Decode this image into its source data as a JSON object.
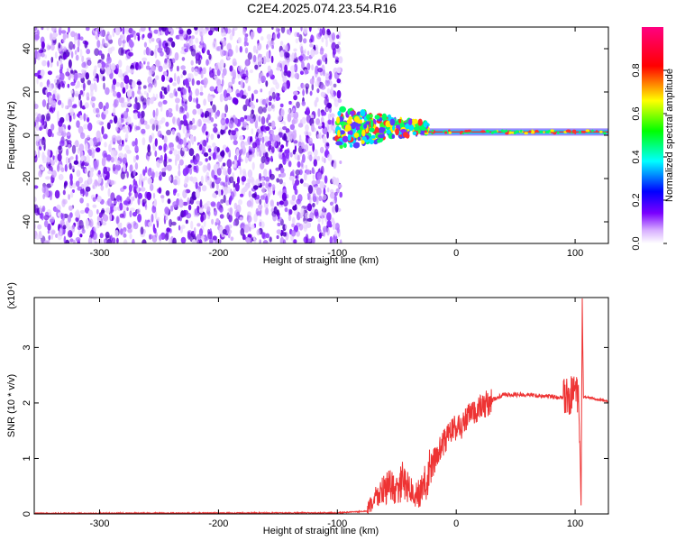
{
  "figure": {
    "title": "C2E4.2025.074.23.54.R16"
  },
  "chart_data": [
    {
      "type": "heatmap",
      "title": "C2E4.2025.074.23.54.R16",
      "xlabel": "Height of straight line (km)",
      "ylabel": "Frequency (Hz)",
      "xlim": [
        -355,
        128
      ],
      "ylim": [
        -50,
        50
      ],
      "xticks": [
        -300,
        -200,
        -100,
        0,
        100
      ],
      "yticks": [
        -40,
        -20,
        0,
        20,
        40
      ],
      "colorbar": {
        "label": "Normalized spectral amplitude",
        "range": [
          0,
          1
        ],
        "ticks": [
          "0.0",
          "0.2",
          "0.4",
          "0.6",
          "0.8"
        ],
        "colors": [
          "#ffffff",
          "#7a00ff",
          "#0000ff",
          "#00ffff",
          "#00ff00",
          "#ffff00",
          "#ff0000",
          "#ff0080"
        ]
      },
      "regions": [
        {
          "name": "noise",
          "x_range": [
            -355,
            -97
          ],
          "y_range": [
            -50,
            50
          ],
          "amplitude": 0.1
        },
        {
          "name": "signal",
          "x_range": [
            -100,
            128
          ],
          "center_freq_hz": 1.5,
          "amplitude": 0.85
        }
      ]
    },
    {
      "type": "line",
      "xlabel": "Height of straight line (km)",
      "ylabel": "SNR (10 * v/v)",
      "y_multiplier": "(x10⁴)",
      "xlim": [
        -355,
        128
      ],
      "ylim": [
        0,
        3.9
      ],
      "xticks": [
        -300,
        -200,
        -100,
        0,
        100
      ],
      "yticks": [
        0,
        1,
        2,
        3
      ],
      "color": "#ee3333",
      "x": [
        -355,
        -100,
        -75,
        -68,
        -60,
        -55,
        -50,
        -45,
        -40,
        -35,
        -30,
        -25,
        -20,
        -15,
        -10,
        -5,
        0,
        5,
        10,
        20,
        30,
        40,
        50,
        60,
        70,
        80,
        90,
        95,
        100,
        103,
        104,
        105,
        106,
        107,
        110,
        128
      ],
      "y": [
        0.01,
        0.02,
        0.05,
        0.3,
        0.45,
        0.5,
        0.4,
        0.6,
        0.5,
        0.3,
        0.4,
        0.6,
        0.9,
        1.1,
        1.3,
        1.5,
        1.55,
        1.6,
        1.75,
        1.9,
        2.05,
        2.15,
        2.15,
        2.15,
        2.13,
        2.12,
        2.1,
        2.1,
        2.2,
        2.0,
        1.3,
        0.15,
        3.9,
        2.1,
        2.1,
        2.03
      ]
    }
  ]
}
